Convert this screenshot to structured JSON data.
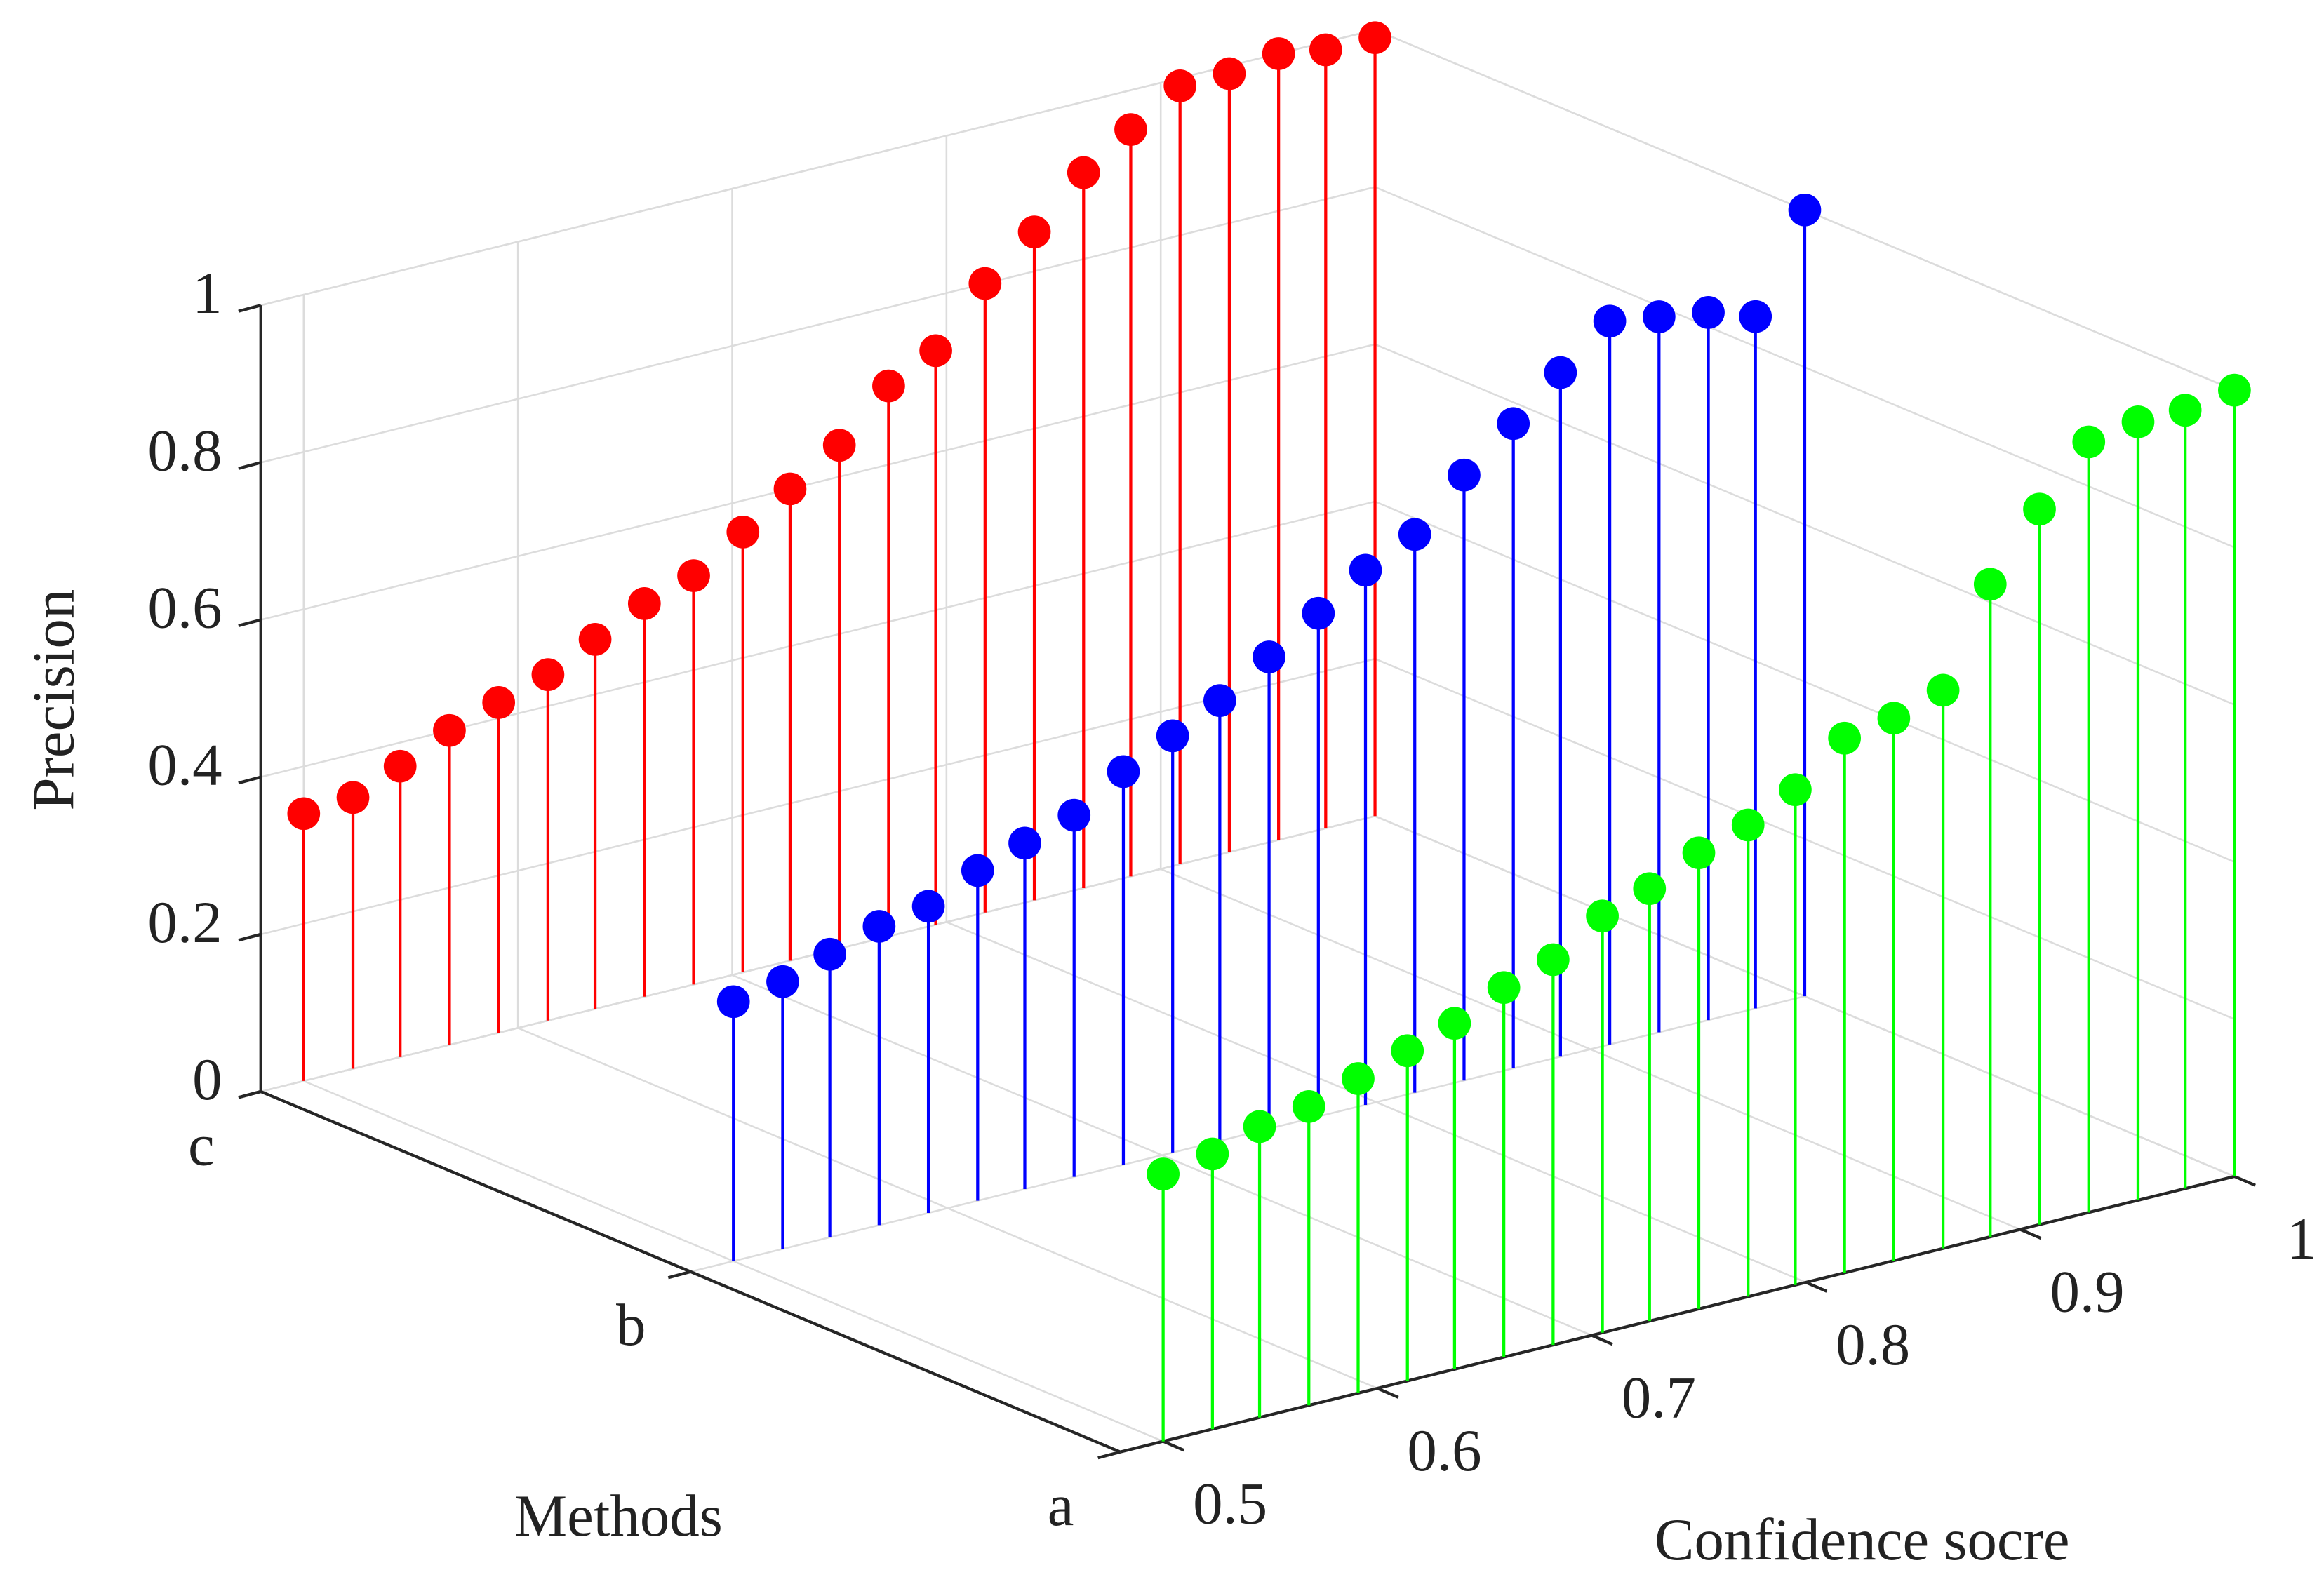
{
  "chart_data": {
    "type": "stem3",
    "zlabel": "Precision",
    "ylabel": "Methods",
    "xlabel": "Confidence socre",
    "categories": [
      "a",
      "b",
      "c"
    ],
    "x": [
      0.5,
      0.523,
      0.545,
      0.568,
      0.591,
      0.614,
      0.636,
      0.659,
      0.682,
      0.705,
      0.727,
      0.75,
      0.773,
      0.795,
      0.818,
      0.841,
      0.864,
      0.886,
      0.909,
      0.932,
      0.955,
      0.977,
      1
    ],
    "series": [
      {
        "color": "#00ff00",
        "values": [
          0.34,
          0.35,
          0.37,
          0.38,
          0.4,
          0.42,
          0.44,
          0.47,
          0.49,
          0.53,
          0.55,
          0.58,
          0.6,
          0.63,
          0.68,
          0.69,
          0.71,
          0.83,
          0.91,
          0.98,
          0.99,
          0.99,
          1.0
        ]
      },
      {
        "color": "#0000ff",
        "values": [
          0.33,
          0.34,
          0.36,
          0.38,
          0.39,
          0.42,
          0.44,
          0.46,
          0.5,
          0.53,
          0.56,
          0.6,
          0.64,
          0.68,
          0.71,
          0.77,
          0.82,
          0.87,
          0.92,
          0.91,
          0.9,
          0.88,
          1.0
        ]
      },
      {
        "color": "#ff0000",
        "values": [
          0.34,
          0.345,
          0.37,
          0.4,
          0.42,
          0.44,
          0.47,
          0.5,
          0.52,
          0.56,
          0.6,
          0.64,
          0.7,
          0.73,
          0.8,
          0.85,
          0.91,
          0.95,
          0.99,
          0.99,
          1.0,
          0.99,
          0.99
        ]
      }
    ],
    "xlim": [
      0.48,
      1
    ],
    "xticks": [
      0.5,
      0.6,
      0.7,
      0.8,
      0.9,
      1
    ],
    "zlim": [
      0,
      1
    ],
    "zticks": [
      0,
      0.2,
      0.4,
      0.6,
      0.8,
      1
    ],
    "grid": true
  }
}
